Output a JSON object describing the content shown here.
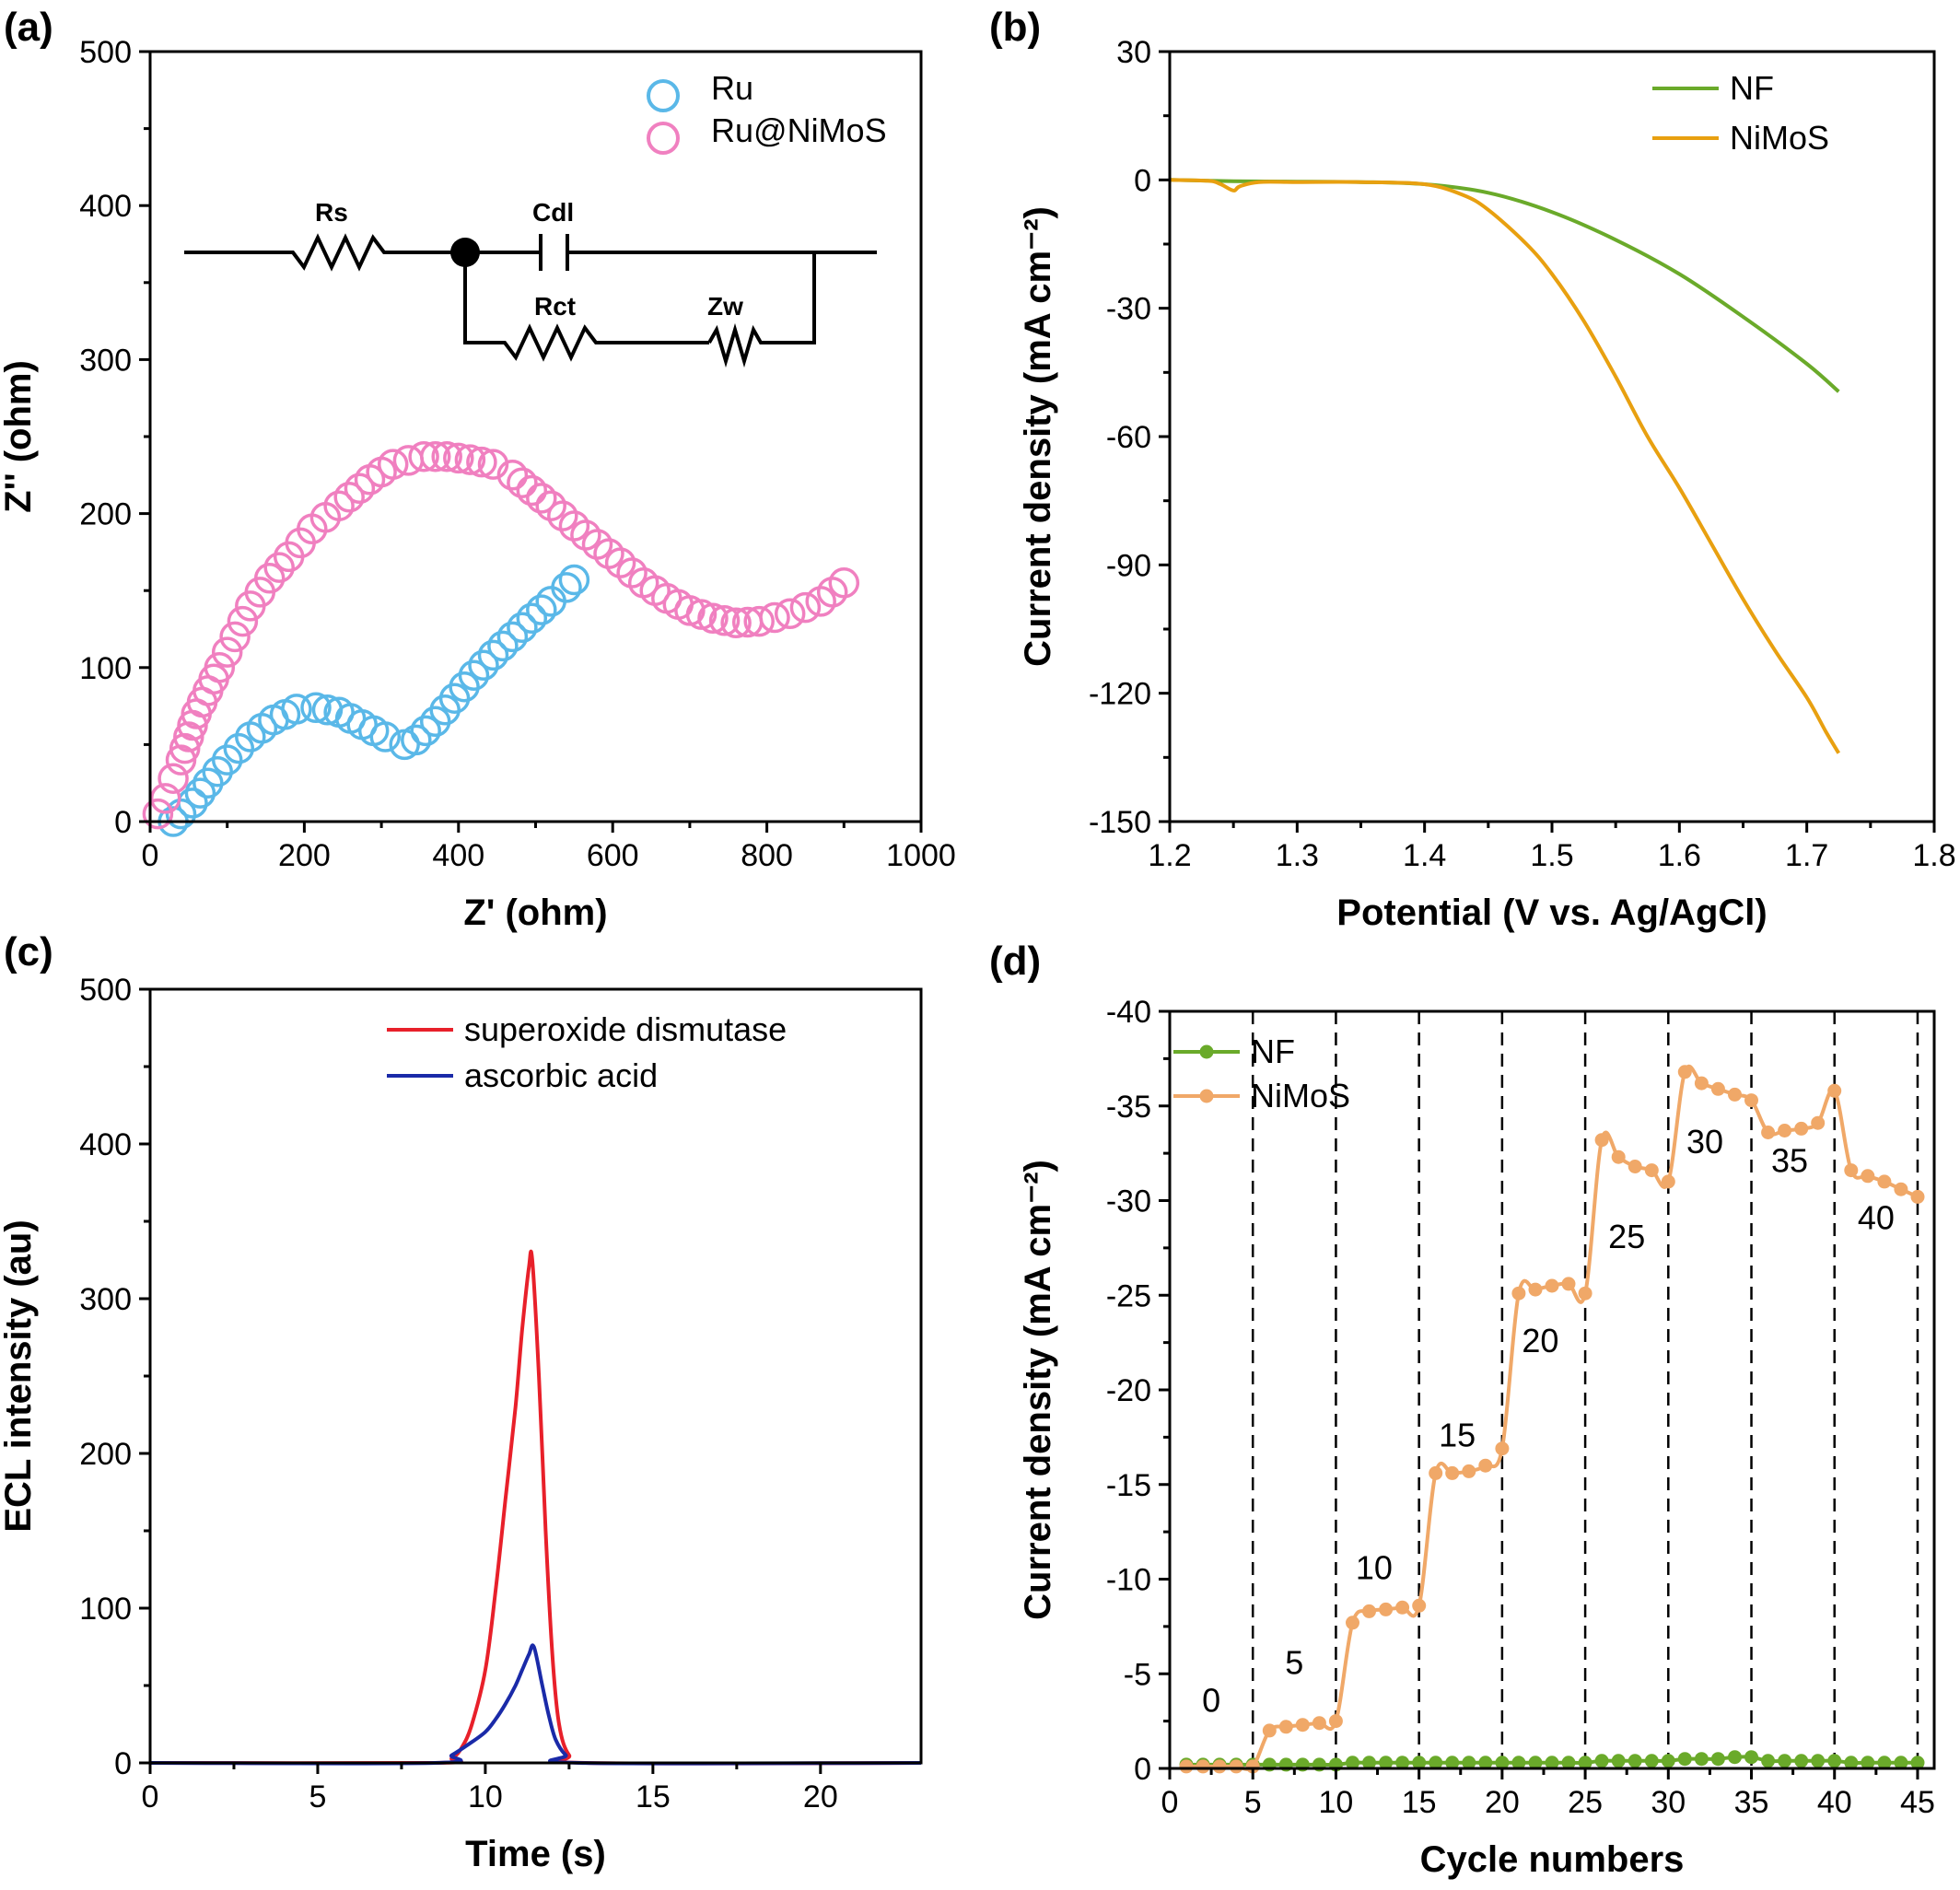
{
  "panels": {
    "a": {
      "label": "(a)"
    },
    "b": {
      "label": "(b)"
    },
    "c": {
      "label": "(c)"
    },
    "d": {
      "label": "(d)"
    }
  },
  "circuit": {
    "labels": [
      "Rs",
      "Cdl",
      "Rct",
      "Zw"
    ]
  },
  "chart_data": [
    {
      "panel": "a",
      "type": "scatter",
      "xlabel": "Z' (ohm)",
      "ylabel": "Z'' (ohm)",
      "xlim": [
        0,
        1000
      ],
      "ylim": [
        0,
        500
      ],
      "xticks": [
        0,
        200,
        400,
        600,
        800,
        1000
      ],
      "yticks": [
        0,
        100,
        200,
        300,
        400,
        500
      ],
      "legend_position": "top-right",
      "series": [
        {
          "name": "Ru",
          "color": "#5ab8e8",
          "marker": "open-circle",
          "x": [
            30,
            40,
            55,
            75,
            100,
            130,
            160,
            190,
            215,
            245,
            275,
            305,
            330,
            345,
            370,
            395,
            420,
            445,
            470,
            495,
            520,
            540,
            550
          ],
          "y": [
            0,
            5,
            12,
            25,
            40,
            55,
            66,
            73,
            74,
            71,
            63,
            55,
            50,
            53,
            65,
            80,
            95,
            108,
            120,
            132,
            143,
            152,
            157
          ]
        },
        {
          "name": "Ru@NiMoS",
          "color": "#f080c0",
          "marker": "open-circle",
          "x": [
            10,
            20,
            30,
            40,
            50,
            60,
            75,
            90,
            110,
            130,
            155,
            180,
            210,
            245,
            285,
            315,
            355,
            385,
            415,
            445,
            470,
            495,
            520,
            550,
            580,
            610,
            640,
            670,
            700,
            730,
            760,
            790,
            830,
            870,
            900
          ],
          "y": [
            5,
            15,
            28,
            40,
            55,
            70,
            85,
            100,
            120,
            140,
            158,
            172,
            190,
            205,
            222,
            232,
            237,
            237,
            235,
            232,
            225,
            215,
            205,
            192,
            180,
            168,
            155,
            145,
            137,
            132,
            129,
            130,
            135,
            143,
            155
          ]
        }
      ]
    },
    {
      "panel": "b",
      "type": "line",
      "xlabel": "Potential (V vs. Ag/AgCl)",
      "ylabel": "Current density (mA cm⁻²)",
      "xlim": [
        1.2,
        1.8
      ],
      "ylim": [
        -150,
        30
      ],
      "xticks": [
        1.2,
        1.3,
        1.4,
        1.5,
        1.6,
        1.7,
        1.8
      ],
      "yticks": [
        30,
        0,
        -30,
        -60,
        -90,
        -120,
        -150
      ],
      "legend_position": "top-right",
      "series": [
        {
          "name": "NF",
          "color": "#6aaa2a",
          "x": [
            1.2,
            1.25,
            1.3,
            1.35,
            1.4,
            1.45,
            1.5,
            1.55,
            1.6,
            1.65,
            1.7,
            1.725
          ],
          "y": [
            0,
            -0.3,
            -0.4,
            -0.5,
            -1,
            -3,
            -7.5,
            -14,
            -22,
            -32,
            -43,
            -49.5
          ]
        },
        {
          "name": "NiMoS",
          "color": "#e8a010",
          "x": [
            1.2,
            1.23,
            1.24,
            1.25,
            1.255,
            1.27,
            1.3,
            1.35,
            1.4,
            1.43,
            1.45,
            1.48,
            1.5,
            1.525,
            1.55,
            1.575,
            1.6,
            1.625,
            1.65,
            1.675,
            1.7,
            1.715,
            1.725
          ],
          "y": [
            0,
            -0.2,
            -1,
            -2.5,
            -1.5,
            -0.5,
            -0.5,
            -0.5,
            -1,
            -3.5,
            -7,
            -15,
            -22,
            -33,
            -46,
            -60,
            -72,
            -85,
            -98,
            -110,
            -121,
            -129,
            -134
          ]
        }
      ]
    },
    {
      "panel": "c",
      "type": "line",
      "xlabel": "Time (s)",
      "ylabel": "ECL intensity (au)",
      "xlim": [
        0,
        23
      ],
      "ylim": [
        0,
        500
      ],
      "xticks": [
        0,
        5,
        10,
        15,
        20
      ],
      "yticks": [
        0,
        100,
        200,
        300,
        400,
        500
      ],
      "legend_position": "top-right",
      "series": [
        {
          "name": "superoxide dismutase",
          "color": "#e8202a",
          "x": [
            0,
            8.5,
            9,
            9.3,
            9.6,
            10,
            10.3,
            10.6,
            10.9,
            11.1,
            11.3,
            11.4,
            11.6,
            11.8,
            12,
            12.2,
            12.5,
            13,
            23
          ],
          "y": [
            0,
            0,
            3,
            10,
            25,
            60,
            110,
            170,
            230,
            280,
            320,
            325,
            250,
            150,
            70,
            25,
            5,
            0,
            0
          ]
        },
        {
          "name": "ascorbic acid",
          "color": "#1a2aa8",
          "x": [
            0,
            8.5,
            9,
            9.5,
            10,
            10.3,
            10.6,
            10.9,
            11.1,
            11.3,
            11.45,
            11.7,
            11.9,
            12.1,
            12.4,
            12.8,
            23
          ],
          "y": [
            0,
            0,
            5,
            12,
            20,
            28,
            38,
            50,
            60,
            70,
            75,
            50,
            30,
            15,
            5,
            0,
            0
          ]
        }
      ]
    },
    {
      "panel": "d",
      "type": "line",
      "xlabel": "Cycle numbers",
      "ylabel": "Current density (mA cm⁻²)",
      "xlim": [
        0,
        46
      ],
      "ylim": [
        0,
        -40
      ],
      "xticks": [
        0,
        5,
        10,
        15,
        20,
        25,
        30,
        35,
        40,
        45
      ],
      "yticks": [
        -40,
        -35,
        -30,
        -25,
        -20,
        -15,
        -10,
        -5,
        0
      ],
      "vlines": [
        5,
        10,
        15,
        20,
        25,
        30,
        35,
        40,
        45
      ],
      "legend_position": "top-left",
      "annotations": [
        {
          "text": "0",
          "x": 2.5,
          "y": -3
        },
        {
          "text": "5",
          "x": 7.5,
          "y": -5
        },
        {
          "text": "10",
          "x": 12.3,
          "y": -10
        },
        {
          "text": "15",
          "x": 17.3,
          "y": -17
        },
        {
          "text": "20",
          "x": 22.3,
          "y": -22
        },
        {
          "text": "25",
          "x": 27.5,
          "y": -27.5
        },
        {
          "text": "30",
          "x": 32.2,
          "y": -32.5
        },
        {
          "text": "35",
          "x": 37.3,
          "y": -31.5
        },
        {
          "text": "40",
          "x": 42.5,
          "y": -28.5
        }
      ],
      "series": [
        {
          "name": "NF",
          "color": "#6aaa2a",
          "marker": "dot",
          "x": [
            1,
            2,
            3,
            4,
            5,
            6,
            7,
            8,
            9,
            10,
            11,
            12,
            13,
            14,
            15,
            16,
            17,
            18,
            19,
            20,
            21,
            22,
            23,
            24,
            25,
            26,
            27,
            28,
            29,
            30,
            31,
            32,
            33,
            34,
            35,
            36,
            37,
            38,
            39,
            40,
            41,
            42,
            43,
            44,
            45
          ],
          "y": [
            -0.2,
            -0.2,
            -0.2,
            -0.2,
            -0.2,
            -0.2,
            -0.2,
            -0.2,
            -0.2,
            -0.2,
            -0.3,
            -0.3,
            -0.3,
            -0.3,
            -0.3,
            -0.3,
            -0.3,
            -0.3,
            -0.3,
            -0.3,
            -0.3,
            -0.3,
            -0.3,
            -0.3,
            -0.3,
            -0.4,
            -0.4,
            -0.4,
            -0.4,
            -0.4,
            -0.5,
            -0.5,
            -0.5,
            -0.6,
            -0.6,
            -0.4,
            -0.4,
            -0.4,
            -0.4,
            -0.4,
            -0.3,
            -0.3,
            -0.3,
            -0.3,
            -0.3
          ]
        },
        {
          "name": "NiMoS",
          "color": "#f0a868",
          "marker": "dot",
          "x": [
            1,
            2,
            3,
            4,
            5,
            6,
            7,
            8,
            9,
            10,
            11,
            12,
            13,
            14,
            15,
            16,
            17,
            18,
            19,
            20,
            21,
            22,
            23,
            24,
            25,
            26,
            27,
            28,
            29,
            30,
            31,
            32,
            33,
            34,
            35,
            36,
            37,
            38,
            39,
            40,
            41,
            42,
            43,
            44,
            45
          ],
          "y": [
            -0.1,
            -0.1,
            -0.1,
            -0.1,
            -0.1,
            -2,
            -2.2,
            -2.3,
            -2.4,
            -2.5,
            -7.7,
            -8.3,
            -8.4,
            -8.5,
            -8.6,
            -15.6,
            -15.6,
            -15.7,
            -16,
            -16.9,
            -25.1,
            -25.3,
            -25.5,
            -25.6,
            -25.1,
            -33.2,
            -32.3,
            -31.8,
            -31.6,
            -31,
            -36.8,
            -36.2,
            -35.9,
            -35.6,
            -35.3,
            -33.6,
            -33.7,
            -33.8,
            -34.1,
            -35.8,
            -31.6,
            -31.3,
            -31,
            -30.6,
            -30.2
          ]
        }
      ]
    }
  ]
}
